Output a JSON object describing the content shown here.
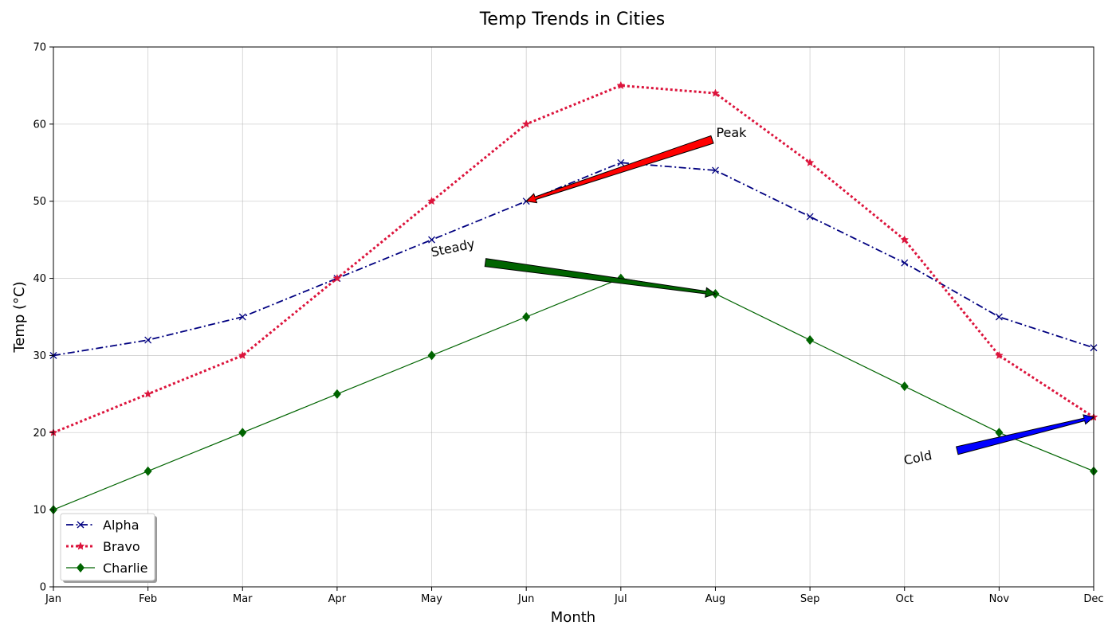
{
  "chart_data": {
    "type": "line",
    "title": "Temp Trends in Cities",
    "xlabel": "Month",
    "ylabel": "Temp (°C)",
    "categories": [
      "Jan",
      "Feb",
      "Mar",
      "Apr",
      "May",
      "Jun",
      "Jul",
      "Aug",
      "Sep",
      "Oct",
      "Nov",
      "Dec"
    ],
    "ylim": [
      0,
      70
    ],
    "yticks": [
      0,
      10,
      20,
      30,
      40,
      50,
      60,
      70
    ],
    "grid": true,
    "legend_position": "lower-left",
    "series": [
      {
        "name": "Alpha",
        "values": [
          30,
          32,
          35,
          40,
          45,
          50,
          55,
          54,
          48,
          42,
          35,
          31
        ],
        "color": "#000080",
        "line_style": "dash-dot",
        "marker": "x"
      },
      {
        "name": "Bravo",
        "values": [
          20,
          25,
          30,
          40,
          50,
          60,
          65,
          64,
          55,
          45,
          30,
          22
        ],
        "color": "#dc143c",
        "line_style": "dotted",
        "marker": "star"
      },
      {
        "name": "Charlie",
        "values": [
          10,
          15,
          20,
          25,
          30,
          35,
          40,
          38,
          32,
          26,
          20,
          15
        ],
        "color": "#006400",
        "line_style": "solid",
        "marker": "diamond"
      }
    ],
    "annotations": [
      {
        "text": "Peak",
        "arrow_color": "#ff0000",
        "text_x": "Aug",
        "text_y": 58,
        "point_x": "Jun",
        "point_y": 50,
        "rotation": 0
      },
      {
        "text": "Steady",
        "arrow_color": "#006400",
        "text_x": "May",
        "text_y": 43,
        "point_x": "Aug",
        "point_y": 38,
        "rotation": -12
      },
      {
        "text": "Cold",
        "arrow_color": "#0000ff",
        "text_x": "Oct",
        "text_y": 16,
        "point_x": "Dec",
        "point_y": 22,
        "rotation": -12
      }
    ]
  }
}
